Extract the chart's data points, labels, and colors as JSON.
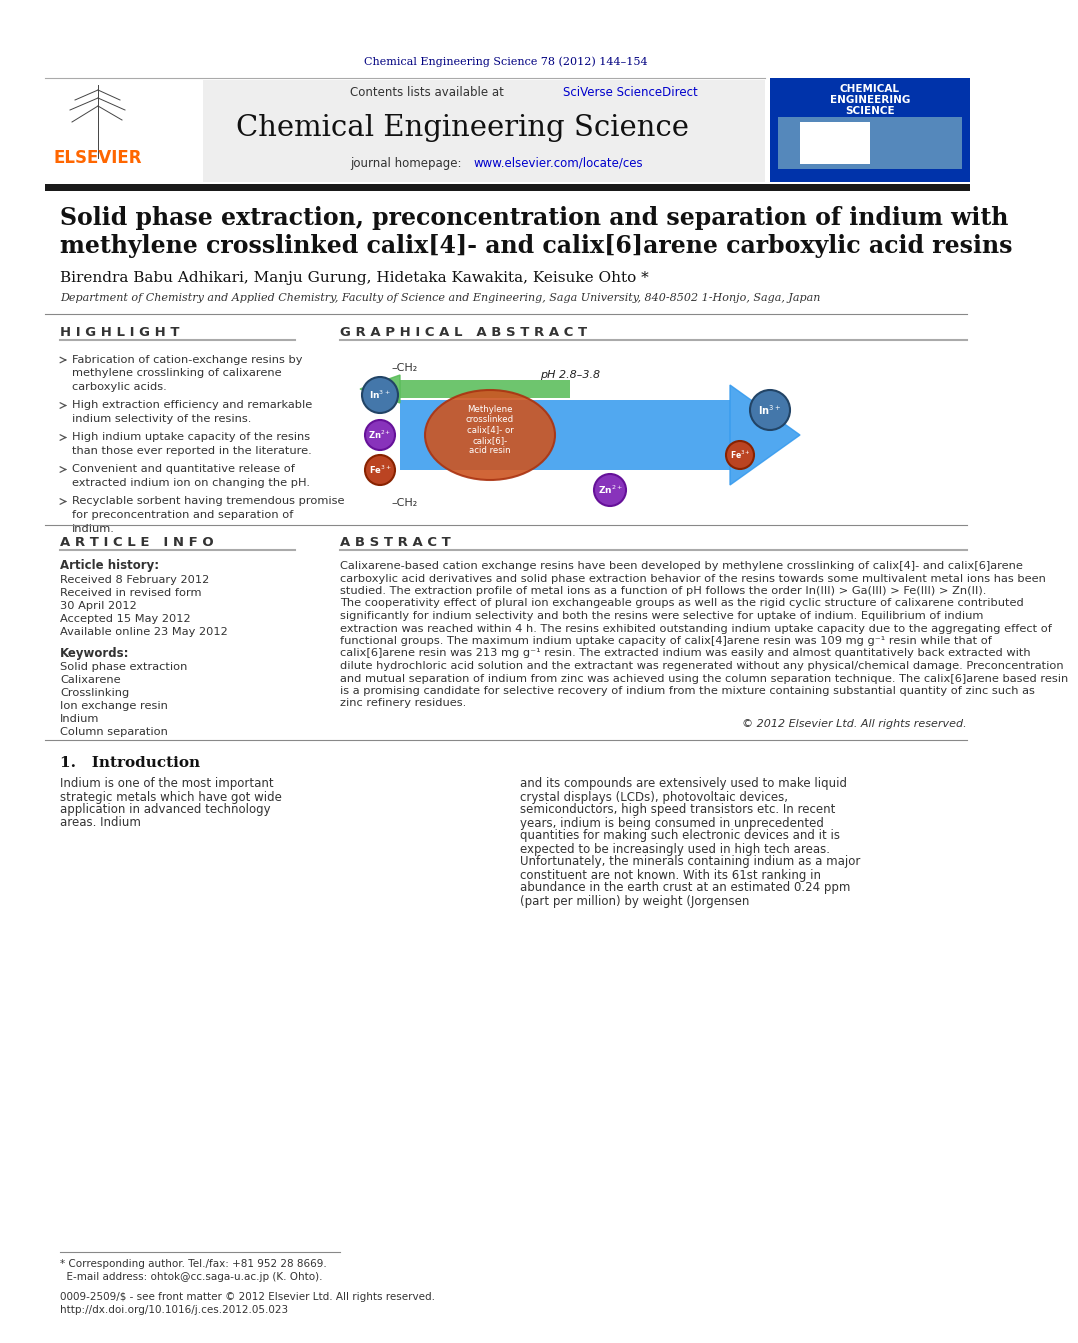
{
  "journal_ref": "Chemical Engineering Science 78 (2012) 144–154",
  "journal_ref_color": "#000080",
  "journal_name": "Chemical Engineering Science",
  "contents_line": "Contents lists available at ",
  "sciverse": "SciVerse ScienceDirect",
  "homepage_text": "journal homepage: ",
  "homepage_url": "www.elsevier.com/locate/ces",
  "elsevier_color": "#FF6600",
  "link_color": "#0000CC",
  "paper_title_line1": "Solid phase extraction, preconcentration and separation of indium with",
  "paper_title_line2": "methylene crosslinked calix[4]- and calix[6]arene carboxylic acid resins",
  "authors": "Birendra Babu Adhikari, Manju Gurung, Hidetaka Kawakita, Keisuke Ohto *",
  "affiliation": "Department of Chemistry and Applied Chemistry, Faculty of Science and Engineering, Saga University, 840-8502 1-Honjo, Saga, Japan",
  "highlight_title": "H I G H L I G H T",
  "graphical_abstract_title": "G R A P H I C A L   A B S T R A C T",
  "highlight_bullets": [
    "Fabrication of cation-exchange resins by methylene crosslinking of calixarene carboxylic acids.",
    "High extraction efficiency and remarkable indium selectivity of the resins.",
    "High indium uptake capacity of the resins than those ever reported in the literature.",
    "Convenient and quantitative release of extracted indium ion on changing the pH.",
    "Recyclable sorbent having tremendous promise for preconcentration and separation of indium."
  ],
  "article_info_title": "A R T I C L E   I N F O",
  "article_history_label": "Article history:",
  "received_1": "Received 8 February 2012",
  "received_2": "Received in revised form",
  "received_2b": "30 April 2012",
  "accepted": "Accepted 15 May 2012",
  "available": "Available online 23 May 2012",
  "keywords_label": "Keywords:",
  "keywords": [
    "Solid phase extraction",
    "Calixarene",
    "Crosslinking",
    "Ion exchange resin",
    "Indium",
    "Column separation"
  ],
  "abstract_title": "A B S T R A C T",
  "abstract_text": "Calixarene-based cation exchange resins have been developed by methylene crosslinking of calix[4]- and calix[6]arene carboxylic acid derivatives and solid phase extraction behavior of the resins towards some multivalent metal ions has been studied. The extraction profile of metal ions as a function of pH follows the order In(III) > Ga(III) > Fe(III) > Zn(II). The cooperativity effect of plural ion exchangeable groups as well as the rigid cyclic structure of calixarene contributed significantly for indium selectivity and both the resins were selective for uptake of indium. Equilibrium of indium extraction was reached within 4 h. The resins exhibited outstanding indium uptake capacity due to the aggregating effect of functional groups. The maximum indium uptake capacity of calix[4]arene resin was 109 mg g⁻¹ resin while that of calix[6]arene resin was 213 mg g⁻¹ resin. The extracted indium was easily and almost quantitatively back extracted with dilute hydrochloric acid solution and the extractant was regenerated without any physical/chemical damage. Preconcentration and mutual separation of indium from zinc was achieved using the column separation technique. The calix[6]arene based resin is a promising candidate for selective recovery of indium from the mixture containing substantial quantity of zinc such as zinc refinery residues.",
  "copyright": "© 2012 Elsevier Ltd. All rights reserved.",
  "intro_title": "1.   Introduction",
  "intro_text_left": "Indium is one of the most important strategic metals which have got wide application in advanced technology areas. Indium",
  "intro_text_right": "and its compounds are extensively used to make liquid crystal displays (LCDs), photovoltaic devices, semiconductors, high speed transistors etc. In recent years, indium is being consumed in unprecedented quantities for making such electronic devices and it is expected to be increasingly used in high tech areas. Unfortunately, the minerals containing indium as a major constituent are not known. With its 61st ranking in abundance in the earth crust at an estimated 0.24 ppm (part per million) by weight (Jorgensen",
  "footnote_text": "* Corresponding author. Tel./fax: +81 952 28 8669.\n  E-mail address: ohtok@cc.saga-u.ac.jp (K. Ohto).",
  "footer_left": "0009-2509/$ - see front matter © 2012 Elsevier Ltd. All rights reserved.\nhttp://dx.doi.org/10.1016/j.ces.2012.05.023",
  "bg_color": "#FFFFFF",
  "header_bg": "#E8E8E8",
  "dark_bar_color": "#1A1A1A",
  "section_line_color": "#999999"
}
